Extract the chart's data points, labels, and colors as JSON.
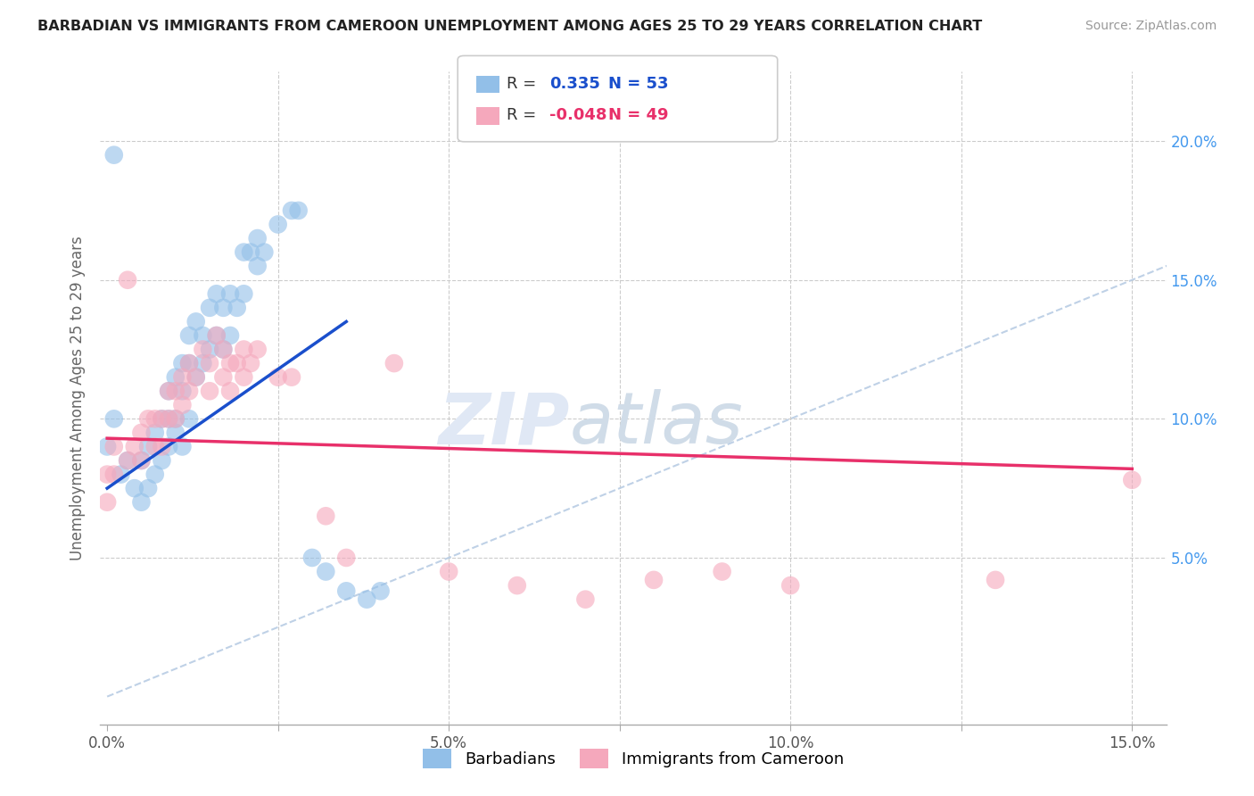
{
  "title": "BARBADIAN VS IMMIGRANTS FROM CAMEROON UNEMPLOYMENT AMONG AGES 25 TO 29 YEARS CORRELATION CHART",
  "source": "Source: ZipAtlas.com",
  "ylabel": "Unemployment Among Ages 25 to 29 years",
  "xlim": [
    -0.001,
    0.155
  ],
  "ylim": [
    -0.01,
    0.225
  ],
  "xtick_vals": [
    0.0,
    0.025,
    0.05,
    0.075,
    0.1,
    0.125,
    0.15
  ],
  "xticklabels": [
    "0.0%",
    "",
    "5.0%",
    "",
    "10.0%",
    "",
    "15.0%"
  ],
  "ytick_vals": [
    0.05,
    0.1,
    0.15,
    0.2
  ],
  "ytick_labels": [
    "5.0%",
    "10.0%",
    "15.0%",
    "20.0%"
  ],
  "barbadians_color": "#92bfe8",
  "cameroon_color": "#f5a8bc",
  "trend1_color": "#1a4fcc",
  "trend2_color": "#e8306a",
  "diag_color": "#b8cce4",
  "background_color": "#ffffff",
  "grid_color": "#cccccc",
  "barbadians_x": [
    0.0,
    0.001,
    0.002,
    0.003,
    0.004,
    0.005,
    0.005,
    0.006,
    0.006,
    0.007,
    0.007,
    0.008,
    0.008,
    0.009,
    0.009,
    0.009,
    0.01,
    0.01,
    0.01,
    0.011,
    0.011,
    0.011,
    0.012,
    0.012,
    0.012,
    0.013,
    0.013,
    0.014,
    0.014,
    0.015,
    0.015,
    0.016,
    0.016,
    0.017,
    0.017,
    0.018,
    0.018,
    0.019,
    0.02,
    0.02,
    0.021,
    0.022,
    0.022,
    0.023,
    0.025,
    0.027,
    0.028,
    0.03,
    0.032,
    0.035,
    0.038,
    0.04,
    0.001
  ],
  "barbadians_y": [
    0.09,
    0.1,
    0.08,
    0.085,
    0.075,
    0.085,
    0.07,
    0.09,
    0.075,
    0.095,
    0.08,
    0.1,
    0.085,
    0.11,
    0.1,
    0.09,
    0.115,
    0.1,
    0.095,
    0.12,
    0.11,
    0.09,
    0.13,
    0.12,
    0.1,
    0.135,
    0.115,
    0.13,
    0.12,
    0.14,
    0.125,
    0.145,
    0.13,
    0.14,
    0.125,
    0.145,
    0.13,
    0.14,
    0.16,
    0.145,
    0.16,
    0.165,
    0.155,
    0.16,
    0.17,
    0.175,
    0.175,
    0.05,
    0.045,
    0.038,
    0.035,
    0.038,
    0.195
  ],
  "cameroon_x": [
    0.0,
    0.0,
    0.001,
    0.001,
    0.003,
    0.004,
    0.005,
    0.005,
    0.006,
    0.007,
    0.007,
    0.008,
    0.008,
    0.009,
    0.009,
    0.01,
    0.01,
    0.011,
    0.011,
    0.012,
    0.012,
    0.013,
    0.014,
    0.015,
    0.015,
    0.016,
    0.017,
    0.017,
    0.018,
    0.018,
    0.019,
    0.02,
    0.02,
    0.021,
    0.022,
    0.025,
    0.027,
    0.032,
    0.035,
    0.042,
    0.05,
    0.06,
    0.07,
    0.08,
    0.09,
    0.1,
    0.13,
    0.15,
    0.003
  ],
  "cameroon_y": [
    0.08,
    0.07,
    0.09,
    0.08,
    0.085,
    0.09,
    0.095,
    0.085,
    0.1,
    0.1,
    0.09,
    0.1,
    0.09,
    0.11,
    0.1,
    0.11,
    0.1,
    0.115,
    0.105,
    0.12,
    0.11,
    0.115,
    0.125,
    0.12,
    0.11,
    0.13,
    0.125,
    0.115,
    0.12,
    0.11,
    0.12,
    0.125,
    0.115,
    0.12,
    0.125,
    0.115,
    0.115,
    0.065,
    0.05,
    0.12,
    0.045,
    0.04,
    0.035,
    0.042,
    0.045,
    0.04,
    0.042,
    0.078,
    0.15
  ],
  "trend1_x": [
    0.0,
    0.035
  ],
  "trend1_y_start": 0.075,
  "trend1_y_end": 0.135,
  "trend2_x": [
    0.0,
    0.15
  ],
  "trend2_y_start": 0.093,
  "trend2_y_end": 0.082,
  "watermark_zip": "ZIP",
  "watermark_atlas": "atlas"
}
